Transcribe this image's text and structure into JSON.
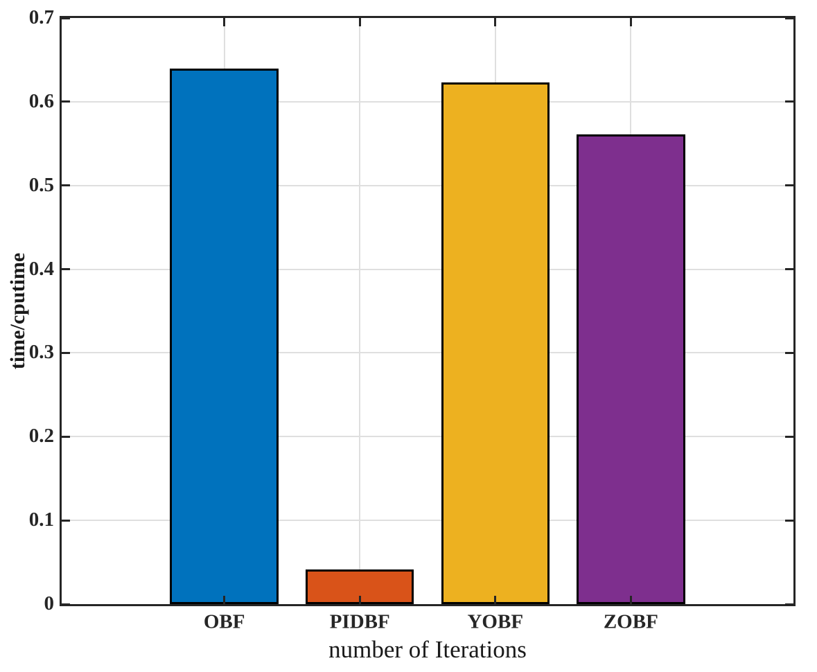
{
  "figure": {
    "background": "#FFFFFF"
  },
  "chart_data": {
    "type": "bar",
    "title": "",
    "xlabel": "number of Iterations",
    "ylabel": "time/cputime",
    "categories": [
      "OBF",
      "PIDBF",
      "YOBF",
      "ZOBF"
    ],
    "values": [
      0.64,
      0.041,
      0.623,
      0.561
    ],
    "series": [
      {
        "name": "time/cputime",
        "values": [
          0.64,
          0.041,
          0.623,
          0.561
        ]
      }
    ],
    "bar_colors": [
      "#0072BD",
      "#D95319",
      "#EDB120",
      "#7E2F8E"
    ],
    "bar_edge_color": "#000000",
    "bar_width_fraction": 0.8,
    "ylim": [
      0,
      0.7
    ],
    "yticks": [
      0,
      0.1,
      0.2,
      0.3,
      0.4,
      0.5,
      0.6,
      0.7
    ],
    "ytick_labels": [
      "0",
      "0.1",
      "0.2",
      "0.3",
      "0.4",
      "0.5",
      "0.6",
      "0.7"
    ],
    "xlim": [
      -0.2,
      5.2
    ],
    "grid": true,
    "grid_color": "#DFDFDF",
    "axis_color": "#262626",
    "tick_direction": "in",
    "box": true,
    "legend": "none"
  }
}
